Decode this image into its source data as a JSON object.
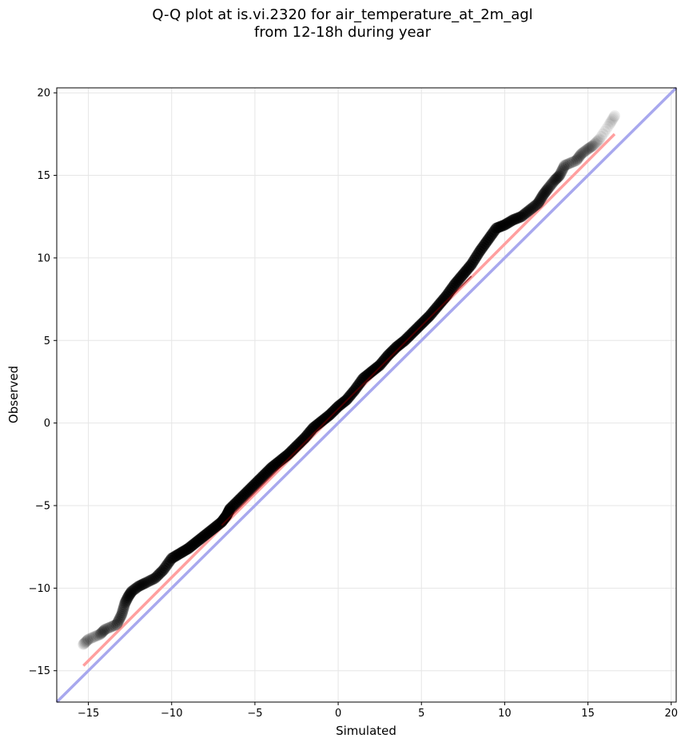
{
  "chart_data": {
    "type": "scatter",
    "title_line1": "Q-Q plot at is.vi.2320 for air_temperature_at_2m_agl",
    "title_line2": "from 12-18h during year",
    "xlabel": "Simulated",
    "ylabel": "Observed",
    "xlim": [
      -16.9,
      20.3
    ],
    "ylim": [
      -16.9,
      20.3
    ],
    "xticks": [
      -15,
      -10,
      -5,
      0,
      5,
      10,
      15,
      20
    ],
    "yticks": [
      -15,
      -10,
      -5,
      0,
      5,
      10,
      15,
      20
    ],
    "xtick_labels": [
      "−15",
      "−10",
      "−5",
      "0",
      "5",
      "10",
      "15",
      "20"
    ],
    "ytick_labels": [
      "−15",
      "−10",
      "−5",
      "0",
      "5",
      "10",
      "15",
      "20"
    ],
    "grid": true,
    "points": {
      "color": "#000000",
      "x": [
        -15.3,
        -15.0,
        -14.3,
        -14.0,
        -13.3,
        -13.0,
        -12.8,
        -12.6,
        -12.4,
        -12.0,
        -11.6,
        -11.0,
        -10.5,
        -10.0,
        -9.5,
        -9.0,
        -8.5,
        -8.0,
        -7.5,
        -7.0,
        -6.7,
        -6.5,
        -6.0,
        -5.5,
        -5.0,
        -4.5,
        -4.0,
        -3.5,
        -3.0,
        -2.5,
        -2.0,
        -1.5,
        -1.0,
        -0.5,
        0.0,
        0.5,
        1.0,
        1.5,
        2.0,
        2.5,
        3.0,
        3.5,
        4.0,
        4.5,
        5.0,
        5.5,
        6.0,
        6.5,
        7.0,
        7.5,
        8.0,
        8.5,
        9.0,
        9.5,
        10.0,
        10.5,
        11.0,
        11.5,
        12.0,
        12.3,
        12.6,
        13.0,
        13.3,
        13.6,
        14.3,
        14.6,
        15.0,
        15.3,
        15.7,
        16.3,
        16.6
      ],
      "y": [
        -13.4,
        -13.1,
        -12.8,
        -12.5,
        -12.2,
        -11.6,
        -10.9,
        -10.5,
        -10.2,
        -9.9,
        -9.7,
        -9.4,
        -8.9,
        -8.2,
        -7.9,
        -7.6,
        -7.2,
        -6.8,
        -6.4,
        -6.0,
        -5.6,
        -5.2,
        -4.7,
        -4.2,
        -3.7,
        -3.2,
        -2.7,
        -2.3,
        -1.9,
        -1.4,
        -0.9,
        -0.3,
        0.1,
        0.5,
        1.0,
        1.4,
        2.0,
        2.7,
        3.1,
        3.5,
        4.1,
        4.6,
        5.0,
        5.5,
        6.0,
        6.5,
        7.1,
        7.7,
        8.4,
        9.0,
        9.6,
        10.4,
        11.1,
        11.8,
        12.0,
        12.3,
        12.5,
        12.9,
        13.3,
        13.8,
        14.2,
        14.7,
        15.0,
        15.6,
        15.9,
        16.3,
        16.6,
        16.8,
        17.2,
        18.1,
        18.6
      ]
    },
    "fit_line": {
      "color": "#ff9f9f",
      "x": [
        -15.3,
        16.6
      ],
      "y": [
        -14.7,
        17.5
      ]
    },
    "identity_line": {
      "color": "#a8a8ee",
      "x": [
        -16.9,
        20.3
      ],
      "y": [
        -16.9,
        20.3
      ]
    }
  }
}
